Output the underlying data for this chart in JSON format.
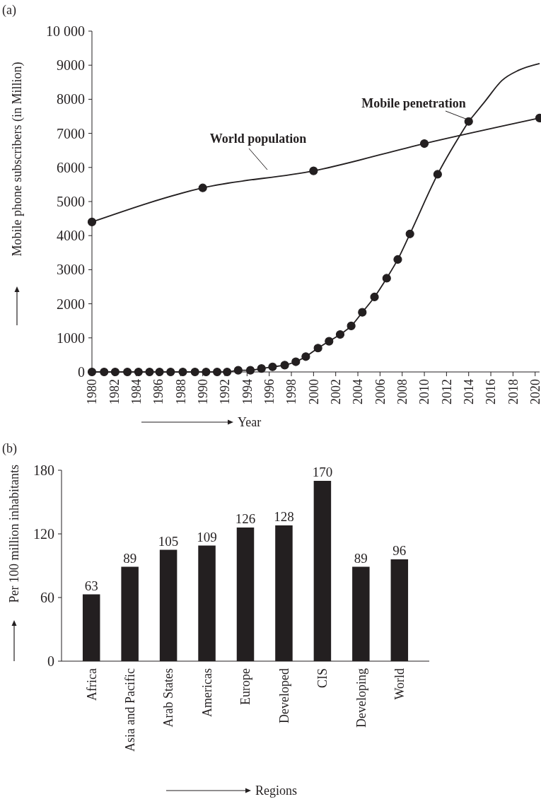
{
  "chart_data": [
    {
      "type": "line",
      "title": "(a)",
      "xlabel": "Year",
      "ylabel": "Mobile phone subscribers (in Million)",
      "xlim": [
        1980,
        2020.4
      ],
      "xticks": [
        1980,
        1982,
        1984,
        1986,
        1988,
        1990,
        1992,
        1994,
        1996,
        1998,
        2000,
        2002,
        2004,
        2006,
        2008,
        2010,
        2012,
        2014,
        2016,
        2018,
        2020
      ],
      "ylim": [
        0,
        10000
      ],
      "yticks": [
        0,
        1000,
        2000,
        3000,
        4000,
        5000,
        6000,
        7000,
        8000,
        9000,
        {
          "value": 10000,
          "label": "10 000"
        }
      ],
      "line_style": "solid",
      "series": [
        {
          "name": "World population",
          "color": "#231f20",
          "marker": "circle",
          "x": [
            1980,
            1990,
            2000,
            2010,
            2020.4
          ],
          "values": [
            4400,
            5400,
            5900,
            6700,
            7450
          ]
        },
        {
          "name": "Mobile penetration",
          "color": "#231f20",
          "marker": "circle",
          "x": [
            1980,
            1981.1,
            1982.1,
            1983.2,
            1984.2,
            1985.2,
            1986.1,
            1987.1,
            1988.2,
            1989.3,
            1990.3,
            1991.3,
            1992.2,
            1993.2,
            1994.3,
            1995.3,
            1996.3,
            1997.4,
            1998.4,
            1999.3,
            2000.4,
            2001.4,
            2002.4,
            2003.4,
            2004.4,
            2005.5,
            2006.6,
            2007.6,
            2008.7,
            2011.2,
            2014
          ],
          "values": [
            0,
            0,
            0,
            0,
            0,
            0,
            0,
            0,
            0,
            0,
            0,
            0,
            0,
            50,
            50,
            100,
            150,
            200,
            300,
            450,
            700,
            900,
            1100,
            1350,
            1750,
            2200,
            2750,
            3300,
            4050,
            5800,
            7350
          ]
        },
        {
          "color": "#231f20",
          "marker": "none",
          "x": [
            2014,
            2015.5,
            2017,
            2018.5,
            2020.4
          ],
          "values": [
            7350,
            7950,
            8550,
            8850,
            9050
          ]
        }
      ]
    },
    {
      "type": "bar",
      "title": "(b)",
      "xlabel": "Regions",
      "ylabel": "Per 100 million inhabitants",
      "categories": [
        "Africa",
        "Asia and Pacific",
        "Arab States",
        "Americas",
        "Europe",
        "Developed",
        "CIS",
        "Developing",
        "World"
      ],
      "values": [
        63,
        89,
        105,
        109,
        126,
        128,
        170,
        89,
        96
      ],
      "color": "#231f20",
      "ylim": [
        0,
        180
      ],
      "yticks": [
        0,
        60,
        120,
        180
      ],
      "data_labels": true
    }
  ]
}
